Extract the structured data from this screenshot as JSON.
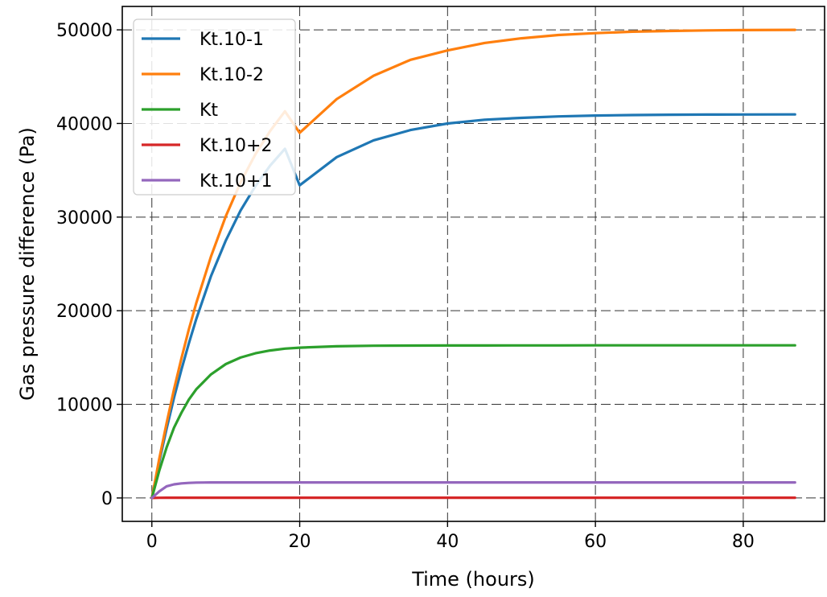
{
  "chart_data": {
    "type": "line",
    "xlabel": "Time (hours)",
    "ylabel": "Gas pressure difference (Pa)",
    "xlim": [
      -4,
      91
    ],
    "ylim": [
      -2500,
      52500
    ],
    "xticks": [
      0,
      20,
      40,
      60,
      80
    ],
    "yticks": [
      0,
      10000,
      20000,
      30000,
      40000,
      50000
    ],
    "grid": true,
    "grid_style": "dashed",
    "legend_position": "top-left",
    "x": [
      0,
      1,
      2,
      3,
      4,
      5,
      6,
      8,
      10,
      12,
      14,
      16,
      18,
      20,
      25,
      30,
      35,
      40,
      45,
      50,
      55,
      60,
      65,
      70,
      75,
      80,
      87
    ],
    "series": [
      {
        "name": "Kt.10-1",
        "color": "#1f77b4",
        "values": [
          0,
          3850,
          7400,
          10700,
          13700,
          16500,
          19100,
          23700,
          27500,
          30700,
          33300,
          35500,
          37300,
          33400,
          36400,
          38200,
          39300,
          40000,
          40400,
          40600,
          40750,
          40850,
          40900,
          40930,
          40950,
          40960,
          40970
        ]
      },
      {
        "name": "Kt.10-2",
        "color": "#ff7f0e",
        "values": [
          0,
          4150,
          8000,
          11600,
          14900,
          18000,
          20800,
          25800,
          30100,
          33700,
          36700,
          39200,
          41300,
          39000,
          42600,
          45100,
          46800,
          47800,
          48600,
          49100,
          49450,
          49650,
          49800,
          49880,
          49940,
          49970,
          50000
        ]
      },
      {
        "name": "Kt",
        "color": "#2ca02c",
        "values": [
          0,
          2900,
          5400,
          7500,
          9100,
          10500,
          11600,
          13200,
          14300,
          15000,
          15450,
          15750,
          15950,
          16050,
          16200,
          16260,
          16280,
          16290,
          16290,
          16295,
          16295,
          16300,
          16300,
          16300,
          16300,
          16300,
          16300
        ]
      },
      {
        "name": "Kt.10+2",
        "color": "#d62728",
        "values": [
          0,
          20,
          30,
          30,
          30,
          30,
          30,
          30,
          30,
          30,
          30,
          30,
          30,
          30,
          30,
          30,
          30,
          30,
          30,
          30,
          30,
          30,
          30,
          30,
          30,
          30,
          30
        ]
      },
      {
        "name": "Kt.10+1",
        "color": "#9467bd",
        "values": [
          0,
          700,
          1250,
          1450,
          1560,
          1610,
          1640,
          1660,
          1660,
          1660,
          1660,
          1660,
          1660,
          1660,
          1660,
          1660,
          1660,
          1660,
          1660,
          1660,
          1660,
          1660,
          1660,
          1660,
          1660,
          1660,
          1660
        ]
      }
    ]
  }
}
